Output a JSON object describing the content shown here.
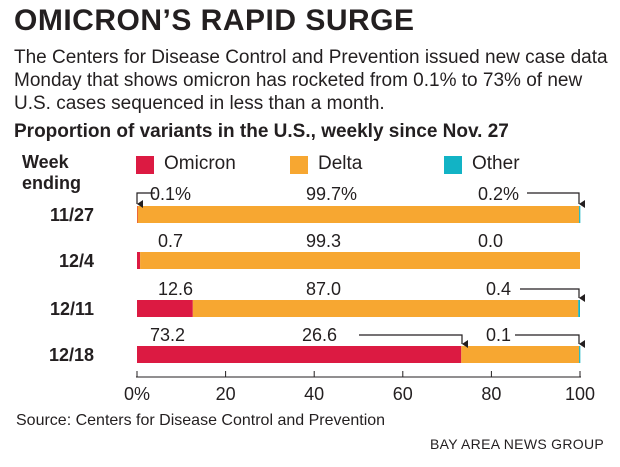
{
  "headline": "OMICRON’S RAPID SURGE",
  "dek": "The Centers for Disease Control and Prevention issued new case data Monday that shows omicron has rocketed from 0.1% to 73% of new U.S. cases sequenced in less than a month.",
  "source": "Source: Centers for Disease Control and Prevention",
  "credit": "BAY AREA NEWS GROUP",
  "week_label_line1": "Week",
  "week_label_line2": "ending",
  "colors": {
    "omicron": "#dc1a42",
    "delta": "#f7a731",
    "other": "#12b3c5"
  },
  "chart_data": {
    "type": "bar",
    "orientation": "horizontal",
    "stacked": true,
    "title": "Proportion of variants in the U.S., weekly since Nov. 27",
    "categories": [
      "11/27",
      "12/4",
      "12/11",
      "12/18"
    ],
    "series": [
      {
        "name": "Omicron",
        "values": [
          0.1,
          0.7,
          12.6,
          73.2
        ],
        "labels": [
          "0.1%",
          "0.7",
          "12.6",
          "73.2"
        ]
      },
      {
        "name": "Delta",
        "values": [
          99.7,
          99.3,
          87.0,
          26.6
        ],
        "labels": [
          "99.7%",
          "99.3",
          "87.0",
          "26.6"
        ]
      },
      {
        "name": "Other",
        "values": [
          0.2,
          0.0,
          0.4,
          0.1
        ],
        "labels": [
          "0.2%",
          "0.0",
          "0.4",
          "0.1"
        ]
      }
    ],
    "xlim": [
      0,
      100
    ],
    "xticks": [
      0,
      20,
      40,
      60,
      80,
      100
    ],
    "xtick_labels": [
      "0%",
      "20",
      "40",
      "60",
      "80",
      "100"
    ],
    "grid": false,
    "legend_position": "top"
  }
}
